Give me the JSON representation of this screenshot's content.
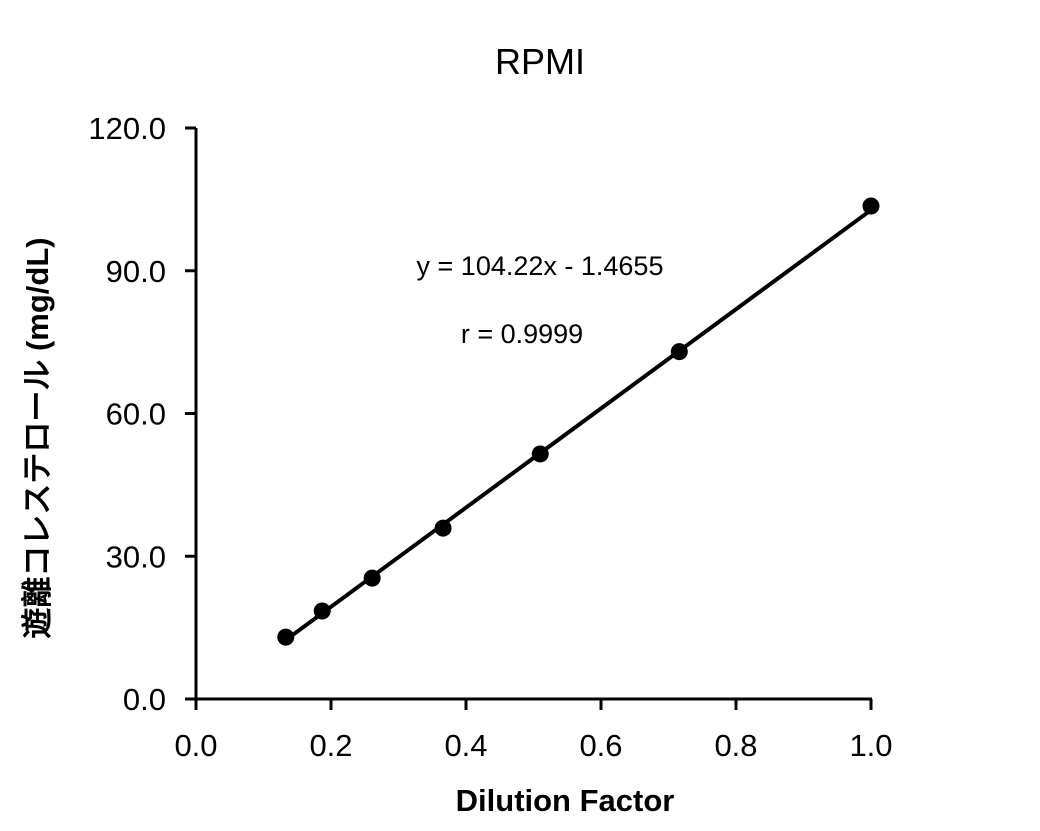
{
  "chart_data": {
    "type": "scatter",
    "title": "RPMI",
    "xlabel": "Dilution Factor",
    "ylabel": "遊離コレステロール (mg/dL)",
    "xlim": [
      0.0,
      1.0
    ],
    "ylim": [
      0.0,
      120.0
    ],
    "x_ticks": [
      "0.0",
      "0.2",
      "0.4",
      "0.6",
      "0.8",
      "1.0"
    ],
    "y_ticks": [
      "0.0",
      "30.0",
      "60.0",
      "90.0",
      "120.0"
    ],
    "grid": false,
    "legend": null,
    "series": [
      {
        "name": "RPMI",
        "marker": "filled-circle",
        "color": "#000000",
        "x": [
          0.133,
          0.187,
          0.261,
          0.366,
          0.51,
          0.716,
          1.0
        ],
        "y": [
          13.0,
          18.5,
          25.4,
          35.9,
          51.5,
          73.0,
          103.6
        ]
      }
    ],
    "trendline": {
      "type": "linear",
      "slope": 104.22,
      "intercept": -1.4655,
      "x_range": [
        0.133,
        1.0
      ],
      "color": "#000000"
    },
    "annotations": [
      "y = 104.22x - 1.4655",
      "r = 0.9999"
    ]
  }
}
